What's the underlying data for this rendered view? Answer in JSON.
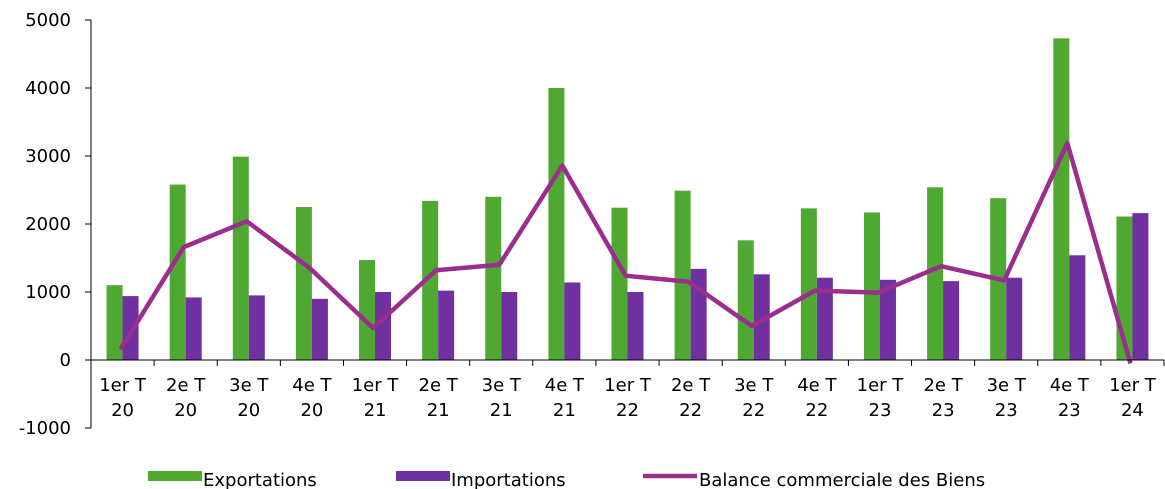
{
  "chart_data": {
    "type": "bar",
    "categories": [
      [
        "1er T",
        "20"
      ],
      [
        "2e T",
        "20"
      ],
      [
        "3e T",
        "20"
      ],
      [
        "4e T",
        "20"
      ],
      [
        "1er T",
        "21"
      ],
      [
        "2e T",
        "21"
      ],
      [
        "3e T",
        "21"
      ],
      [
        "4e T",
        "21"
      ],
      [
        "1er T",
        "22"
      ],
      [
        "2e T",
        "22"
      ],
      [
        "3e T",
        "22"
      ],
      [
        "4e T",
        "22"
      ],
      [
        "1er T",
        "23"
      ],
      [
        "2e T",
        "23"
      ],
      [
        "3e T",
        "23"
      ],
      [
        "4e T",
        "23"
      ],
      [
        "1er T",
        "24"
      ]
    ],
    "series": [
      {
        "name": "Exportations",
        "type": "bar",
        "color": "#4fa832",
        "values": [
          1100,
          2580,
          2990,
          2250,
          1470,
          2340,
          2400,
          4000,
          2240,
          2490,
          1760,
          2230,
          2170,
          2540,
          2380,
          4730,
          2110
        ]
      },
      {
        "name": "Importations",
        "type": "bar",
        "color": "#7030a0",
        "values": [
          940,
          920,
          950,
          900,
          1000,
          1020,
          1000,
          1140,
          1000,
          1340,
          1260,
          1210,
          1180,
          1160,
          1210,
          1540,
          2160
        ]
      },
      {
        "name": "Balance commerciale des Biens",
        "type": "line",
        "color": "#9b2d8e",
        "values": [
          160,
          1660,
          2040,
          1350,
          470,
          1320,
          1400,
          2860,
          1240,
          1150,
          500,
          1020,
          990,
          1380,
          1170,
          3190,
          -50
        ]
      }
    ],
    "yticks": [
      -1000,
      0,
      1000,
      2000,
      3000,
      4000,
      5000
    ],
    "ylim": [
      -1000,
      5000
    ],
    "grid": false,
    "legend": "bottom"
  }
}
